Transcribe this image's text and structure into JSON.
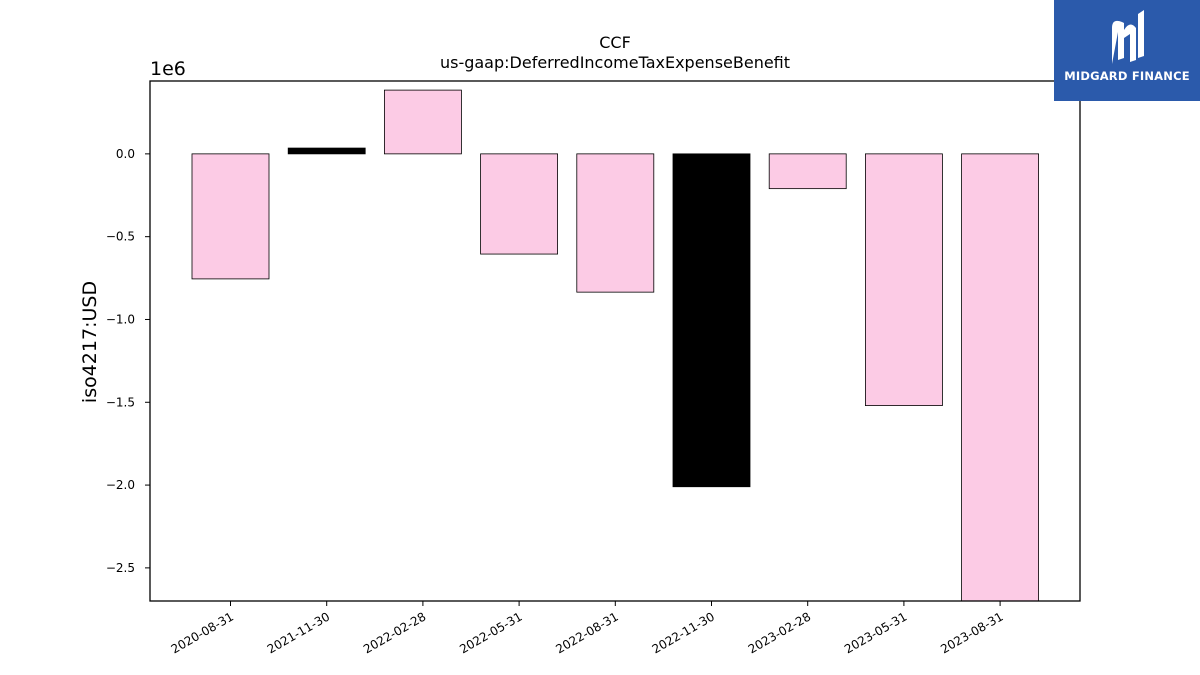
{
  "brand": {
    "name": "MIDGARD FINANCE",
    "background": "#2b5aab"
  },
  "chart_data": {
    "type": "bar",
    "title": "CCF",
    "subtitle": "us-gaap:DeferredIncomeTaxExpenseBenefit",
    "ylabel": "iso4217:USD",
    "xlabel": "",
    "scale_label": "1e6",
    "ylim": [
      -2.7,
      0.44
    ],
    "yticks": [
      0.0,
      -0.5,
      -1.0,
      -1.5,
      -2.0,
      -2.5
    ],
    "ytick_labels": [
      "0.0",
      "−0.5",
      "−1.0",
      "−1.5",
      "−2.0",
      "−2.5"
    ],
    "categories": [
      "2020-08-31",
      "2021-11-30",
      "2022-02-28",
      "2022-05-31",
      "2022-08-31",
      "2022-11-30",
      "2023-02-28",
      "2023-05-31",
      "2023-08-31"
    ],
    "values": [
      -0.755,
      0.035,
      0.385,
      -0.605,
      -0.835,
      -2.01,
      -0.21,
      -1.52,
      -2.75
    ],
    "colors": [
      "#fccbe5",
      "#000000",
      "#fccbe5",
      "#fccbe5",
      "#fccbe5",
      "#000000",
      "#fccbe5",
      "#fccbe5",
      "#fccbe5"
    ],
    "grid": false,
    "legend": "none"
  }
}
